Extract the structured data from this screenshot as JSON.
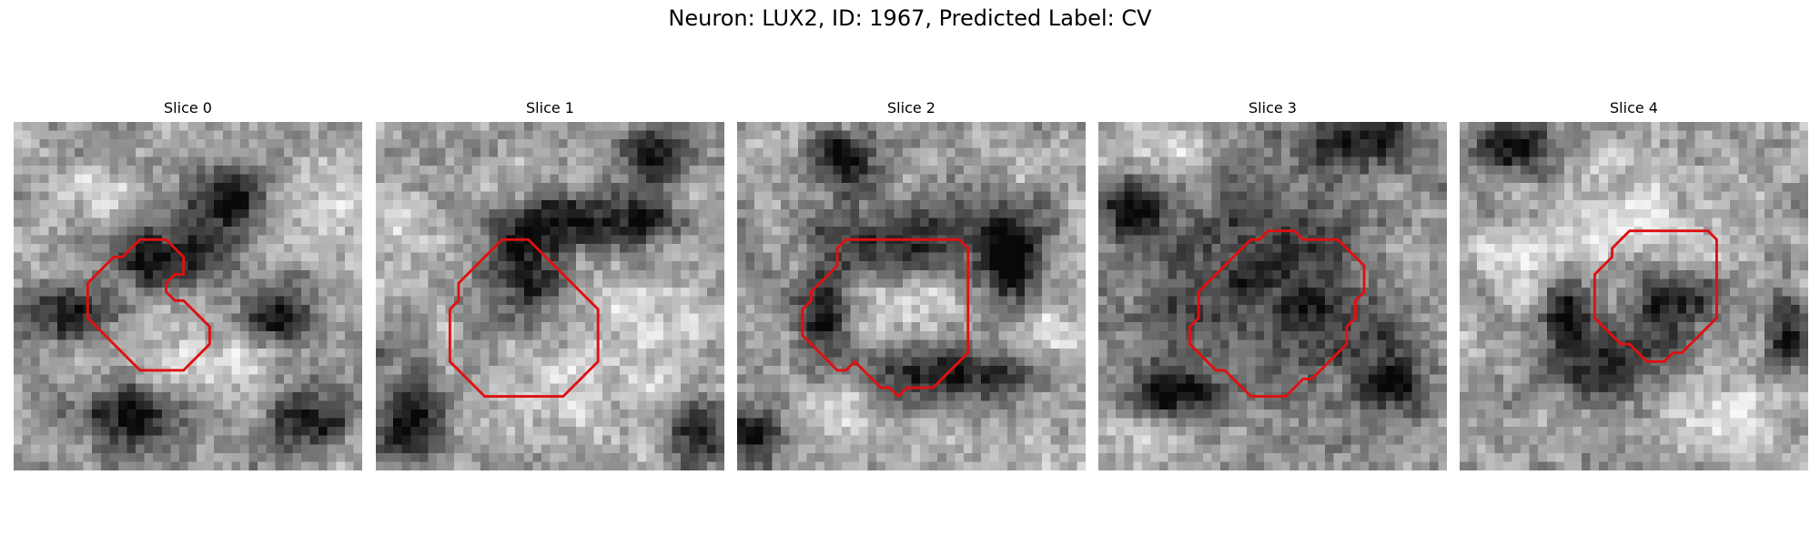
{
  "figure": {
    "title": "Neuron: LUX2, ID: 1967, Predicted Label: CV"
  },
  "colors": {
    "contour": "#e01010",
    "background": "#ffffff"
  },
  "slices": [
    {
      "title": "Slice 0",
      "dark_blobs": [
        [
          0.45,
          0.38,
          0.16,
          0.09
        ],
        [
          0.62,
          0.22,
          0.14,
          0.1
        ],
        [
          0.15,
          0.55,
          0.12,
          0.08
        ],
        [
          0.75,
          0.55,
          0.1,
          0.09
        ],
        [
          0.35,
          0.85,
          0.15,
          0.1
        ],
        [
          0.85,
          0.85,
          0.12,
          0.1
        ]
      ],
      "bright_blobs": [
        [
          0.85,
          0.25,
          0.15,
          0.12
        ],
        [
          0.55,
          0.7,
          0.22,
          0.1
        ],
        [
          0.25,
          0.2,
          0.12,
          0.07
        ]
      ],
      "contour": [
        [
          16.5,
          28.5
        ],
        [
          19.5,
          28.5
        ],
        [
          20.5,
          27.5
        ],
        [
          21.5,
          26.5
        ],
        [
          22.5,
          25.5
        ],
        [
          22.5,
          23.5
        ],
        [
          21.5,
          22.5
        ],
        [
          19.5,
          20.5
        ],
        [
          18.5,
          20.5
        ],
        [
          17.5,
          19.5
        ],
        [
          17.5,
          18.5
        ],
        [
          18.5,
          17.5
        ],
        [
          19.5,
          17.5
        ],
        [
          19.5,
          15.5
        ],
        [
          18.5,
          14.5
        ],
        [
          17.5,
          13.5
        ],
        [
          14.5,
          13.5
        ],
        [
          13.5,
          14.5
        ],
        [
          12.5,
          15.5
        ],
        [
          11.5,
          15.5
        ],
        [
          10.5,
          16.5
        ],
        [
          9.5,
          17.5
        ],
        [
          8.5,
          18.5
        ],
        [
          8.5,
          22.5
        ],
        [
          9.5,
          23.5
        ],
        [
          10.5,
          24.5
        ],
        [
          11.5,
          25.5
        ],
        [
          12.5,
          26.5
        ],
        [
          13.5,
          27.5
        ],
        [
          14.5,
          28.5
        ]
      ]
    },
    {
      "title": "Slice 1",
      "dark_blobs": [
        [
          0.43,
          0.4,
          0.12,
          0.14
        ],
        [
          0.53,
          0.28,
          0.2,
          0.08
        ],
        [
          0.78,
          0.28,
          0.08,
          0.07
        ],
        [
          0.8,
          0.08,
          0.1,
          0.09
        ],
        [
          0.1,
          0.85,
          0.1,
          0.14
        ],
        [
          0.92,
          0.88,
          0.08,
          0.09
        ]
      ],
      "bright_blobs": [
        [
          0.4,
          0.25,
          0.12,
          0.12
        ],
        [
          0.6,
          0.77,
          0.3,
          0.12
        ],
        [
          0.1,
          0.3,
          0.08,
          0.1
        ],
        [
          0.8,
          0.55,
          0.12,
          0.1
        ]
      ],
      "contour": [
        [
          14.5,
          31.5
        ],
        [
          21.5,
          31.5
        ],
        [
          22.5,
          30.5
        ],
        [
          23.5,
          29.5
        ],
        [
          24.5,
          28.5
        ],
        [
          25.5,
          27.5
        ],
        [
          25.5,
          21.5
        ],
        [
          24.5,
          20.5
        ],
        [
          23.5,
          19.5
        ],
        [
          22.5,
          18.5
        ],
        [
          21.5,
          17.5
        ],
        [
          20.5,
          16.5
        ],
        [
          19.5,
          15.5
        ],
        [
          18.5,
          14.5
        ],
        [
          17.5,
          13.5
        ],
        [
          14.5,
          13.5
        ],
        [
          13.5,
          14.5
        ],
        [
          12.5,
          15.5
        ],
        [
          11.5,
          16.5
        ],
        [
          10.5,
          17.5
        ],
        [
          9.5,
          18.5
        ],
        [
          9.5,
          20.5
        ],
        [
          8.5,
          21.5
        ],
        [
          8.5,
          27.5
        ],
        [
          9.5,
          28.5
        ],
        [
          10.5,
          29.5
        ],
        [
          11.5,
          30.5
        ],
        [
          12.5,
          31.5
        ]
      ]
    },
    {
      "title": "Slice 2",
      "dark_blobs": [
        [
          0.5,
          0.35,
          0.3,
          0.12
        ],
        [
          0.55,
          0.72,
          0.28,
          0.09
        ],
        [
          0.8,
          0.4,
          0.08,
          0.15
        ],
        [
          0.25,
          0.55,
          0.08,
          0.12
        ],
        [
          0.05,
          0.9,
          0.08,
          0.08
        ],
        [
          0.3,
          0.1,
          0.1,
          0.08
        ]
      ],
      "bright_blobs": [
        [
          0.5,
          0.5,
          0.18,
          0.16
        ],
        [
          0.3,
          0.8,
          0.15,
          0.1
        ],
        [
          0.9,
          0.6,
          0.1,
          0.1
        ]
      ],
      "contour": [
        [
          13.5,
          27.5
        ],
        [
          14.5,
          28.5
        ],
        [
          15.5,
          29.5
        ],
        [
          16.5,
          30.5
        ],
        [
          17.5,
          30.5
        ],
        [
          18.5,
          31.5
        ],
        [
          19.5,
          30.5
        ],
        [
          22.5,
          30.5
        ],
        [
          23.5,
          29.5
        ],
        [
          24.5,
          28.5
        ],
        [
          25.5,
          27.5
        ],
        [
          26.5,
          26.5
        ],
        [
          26.5,
          14.5
        ],
        [
          25.5,
          13.5
        ],
        [
          12.5,
          13.5
        ],
        [
          11.5,
          14.5
        ],
        [
          11.5,
          16.5
        ],
        [
          10.5,
          17.5
        ],
        [
          9.5,
          18.5
        ],
        [
          8.5,
          19.5
        ],
        [
          8.5,
          20.5
        ],
        [
          7.5,
          21.5
        ],
        [
          7.5,
          24.5
        ],
        [
          8.5,
          25.5
        ],
        [
          9.5,
          26.5
        ],
        [
          10.5,
          27.5
        ],
        [
          11.5,
          28.5
        ],
        [
          12.5,
          28.5
        ]
      ]
    },
    {
      "title": "Slice 3",
      "dark_blobs": [
        [
          0.5,
          0.5,
          0.36,
          0.28
        ],
        [
          0.75,
          0.05,
          0.2,
          0.08
        ],
        [
          0.1,
          0.25,
          0.1,
          0.08
        ],
        [
          0.2,
          0.78,
          0.12,
          0.08
        ],
        [
          0.85,
          0.75,
          0.1,
          0.08
        ]
      ],
      "bright_blobs": [
        [
          0.45,
          0.58,
          0.14,
          0.14
        ],
        [
          0.2,
          0.08,
          0.14,
          0.08
        ],
        [
          0.85,
          0.4,
          0.12,
          0.1
        ],
        [
          0.15,
          0.9,
          0.1,
          0.08
        ]
      ],
      "contour": [
        [
          14.5,
          28.5
        ],
        [
          15.5,
          29.5
        ],
        [
          16.5,
          30.5
        ],
        [
          17.5,
          31.5
        ],
        [
          21.5,
          31.5
        ],
        [
          22.5,
          30.5
        ],
        [
          23.5,
          29.5
        ],
        [
          24.5,
          29.5
        ],
        [
          25.5,
          28.5
        ],
        [
          26.5,
          27.5
        ],
        [
          27.5,
          26.5
        ],
        [
          28.5,
          25.5
        ],
        [
          28.5,
          23.5
        ],
        [
          29.5,
          22.5
        ],
        [
          29.5,
          20.5
        ],
        [
          30.5,
          19.5
        ],
        [
          30.5,
          16.5
        ],
        [
          29.5,
          15.5
        ],
        [
          28.5,
          14.5
        ],
        [
          27.5,
          13.5
        ],
        [
          23.5,
          13.5
        ],
        [
          22.5,
          12.5
        ],
        [
          19.5,
          12.5
        ],
        [
          18.5,
          13.5
        ],
        [
          17.5,
          13.5
        ],
        [
          16.5,
          14.5
        ],
        [
          15.5,
          15.5
        ],
        [
          14.5,
          16.5
        ],
        [
          13.5,
          17.5
        ],
        [
          12.5,
          18.5
        ],
        [
          11.5,
          19.5
        ],
        [
          11.5,
          22.5
        ],
        [
          10.5,
          23.5
        ],
        [
          10.5,
          25.5
        ],
        [
          11.5,
          26.5
        ],
        [
          12.5,
          27.5
        ],
        [
          13.5,
          28.5
        ]
      ]
    },
    {
      "title": "Slice 4",
      "dark_blobs": [
        [
          0.6,
          0.52,
          0.12,
          0.1
        ],
        [
          0.42,
          0.7,
          0.15,
          0.1
        ],
        [
          0.15,
          0.08,
          0.12,
          0.08
        ],
        [
          0.3,
          0.55,
          0.06,
          0.1
        ],
        [
          0.95,
          0.6,
          0.06,
          0.1
        ]
      ],
      "bright_blobs": [
        [
          0.5,
          0.3,
          0.25,
          0.15
        ],
        [
          0.75,
          0.85,
          0.18,
          0.1
        ],
        [
          0.15,
          0.4,
          0.1,
          0.12
        ]
      ],
      "contour": [
        [
          19.5,
          25.5
        ],
        [
          20.5,
          26.5
        ],
        [
          21.5,
          27.5
        ],
        [
          23.5,
          27.5
        ],
        [
          24.5,
          26.5
        ],
        [
          25.5,
          26.5
        ],
        [
          26.5,
          25.5
        ],
        [
          27.5,
          24.5
        ],
        [
          28.5,
          23.5
        ],
        [
          29.5,
          22.5
        ],
        [
          29.5,
          13.5
        ],
        [
          28.5,
          12.5
        ],
        [
          19.5,
          12.5
        ],
        [
          18.5,
          13.5
        ],
        [
          17.5,
          14.5
        ],
        [
          17.5,
          15.5
        ],
        [
          16.5,
          16.5
        ],
        [
          15.5,
          17.5
        ],
        [
          15.5,
          22.5
        ],
        [
          16.5,
          23.5
        ],
        [
          17.5,
          24.5
        ],
        [
          18.5,
          25.5
        ]
      ]
    }
  ]
}
